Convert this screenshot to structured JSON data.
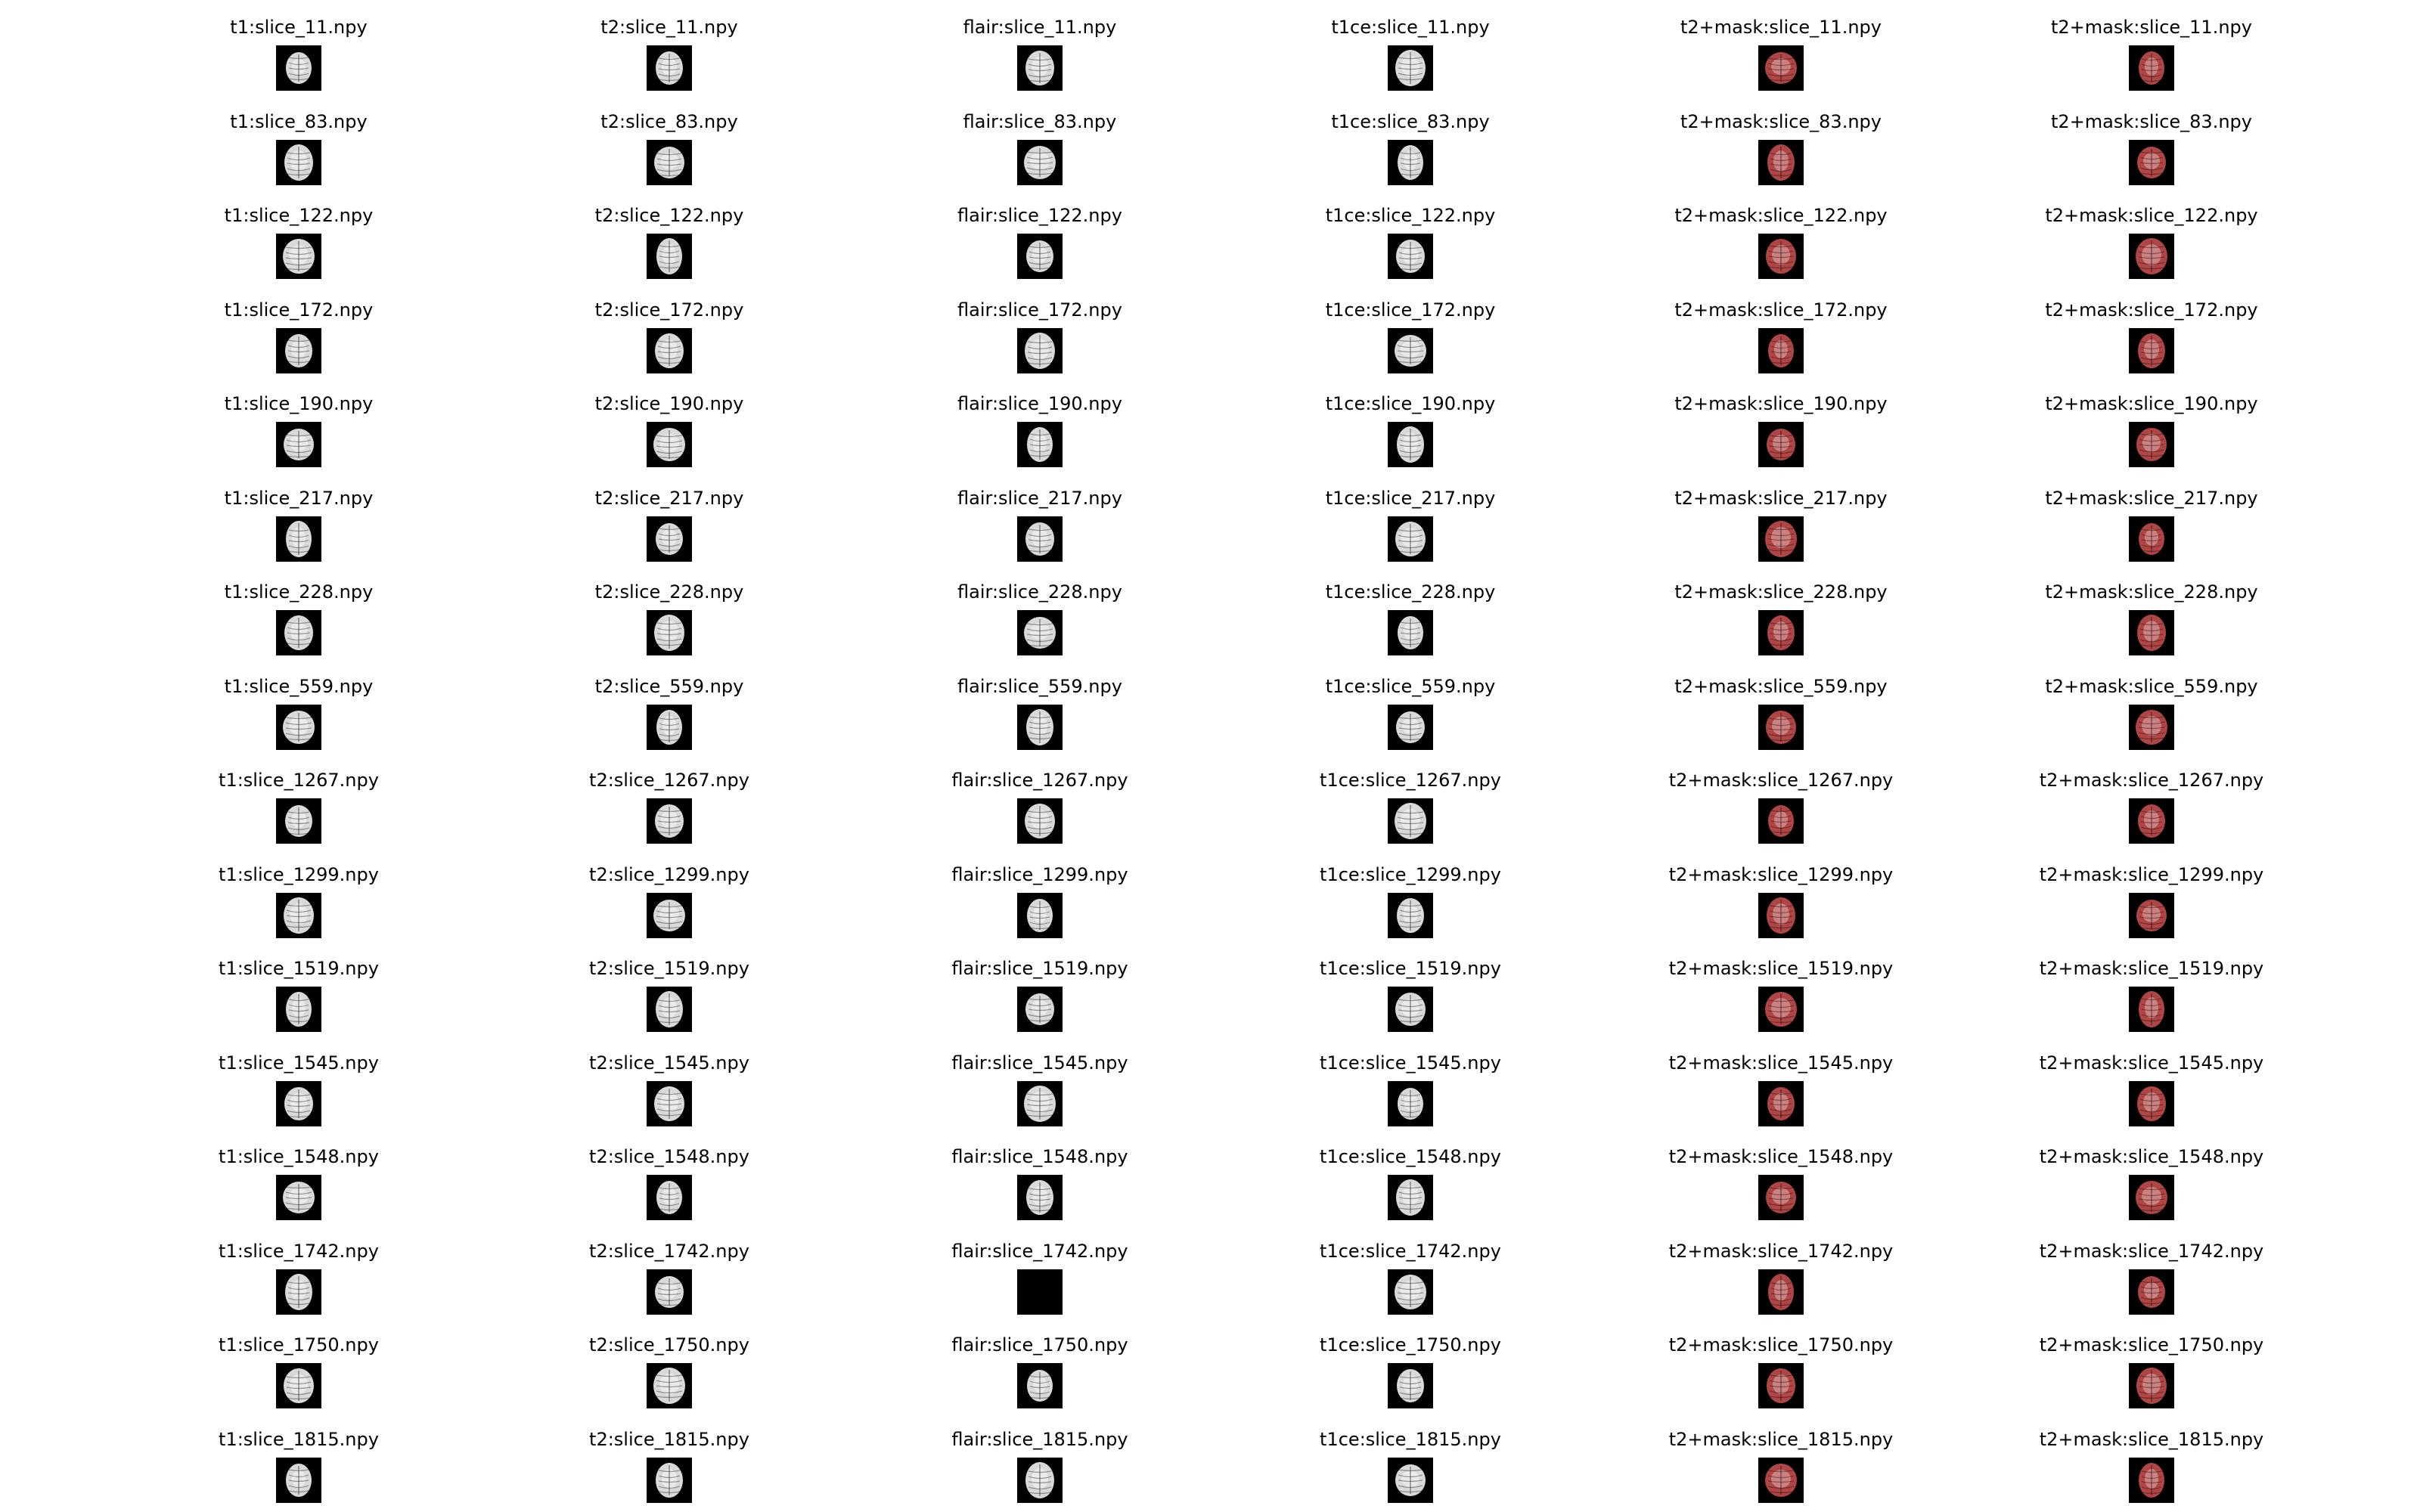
{
  "figure": {
    "modalities": [
      "t1",
      "t2",
      "flair",
      "t1ce",
      "t2+mask",
      "t2+mask"
    ],
    "slices": [
      "slice_11.npy",
      "slice_83.npy",
      "slice_122.npy",
      "slice_172.npy",
      "slice_190.npy",
      "slice_217.npy",
      "slice_228.npy",
      "slice_559.npy",
      "slice_1267.npy",
      "slice_1299.npy",
      "slice_1519.npy",
      "slice_1545.npy",
      "slice_1548.npy",
      "slice_1742.npy",
      "slice_1750.npy",
      "slice_1815.npy"
    ],
    "separator": ":",
    "thumbnail_tints": {
      "grayscale": "#d9d9d9",
      "mask_overlay": "#b04545",
      "background": "#000000"
    }
  }
}
